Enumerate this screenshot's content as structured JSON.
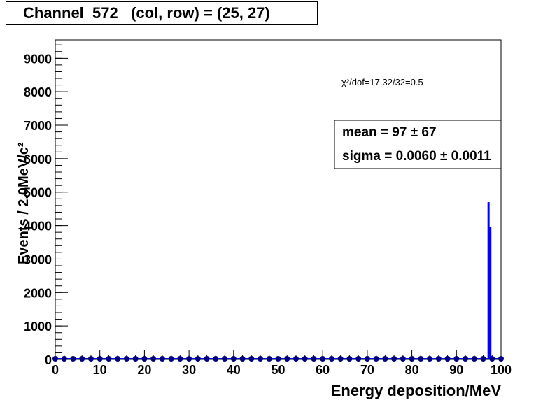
{
  "title": "Channel  572   (col, row) = (25, 27)",
  "chart_data": {
    "type": "bar",
    "xlabel": "Energy deposition/MeV",
    "ylabel": "Events / 2.0MeV/c²",
    "xlim": [
      0,
      100
    ],
    "ylim": [
      0,
      9550
    ],
    "x_ticks": [
      "0",
      "10",
      "20",
      "30",
      "40",
      "50",
      "60",
      "70",
      "80",
      "90",
      "100"
    ],
    "y_ticks": [
      "0",
      "1000",
      "2000",
      "3000",
      "4000",
      "5000",
      "6000",
      "7000",
      "8000",
      "9000"
    ],
    "histogram": {
      "color": "#0000ff",
      "bins": [
        {
          "x": 97.2,
          "y": 4700
        },
        {
          "x": 97.6,
          "y": 3950
        }
      ]
    },
    "data_points": {
      "color": "#00007f",
      "x": [
        0,
        2,
        4,
        6,
        8,
        10,
        12,
        14,
        16,
        18,
        20,
        22,
        24,
        26,
        28,
        30,
        32,
        34,
        36,
        38,
        40,
        42,
        44,
        46,
        48,
        50,
        52,
        54,
        56,
        58,
        60,
        62,
        64,
        66,
        68,
        70,
        72,
        74,
        76,
        78,
        80,
        82,
        84,
        86,
        88,
        90,
        92,
        94,
        96,
        98,
        100
      ],
      "y": [
        0,
        0,
        0,
        0,
        0,
        0,
        0,
        0,
        0,
        0,
        0,
        0,
        0,
        0,
        0,
        0,
        0,
        0,
        0,
        0,
        0,
        0,
        0,
        0,
        0,
        0,
        0,
        0,
        0,
        0,
        0,
        0,
        0,
        0,
        0,
        0,
        0,
        0,
        0,
        0,
        0,
        0,
        0,
        0,
        0,
        0,
        0,
        0,
        0,
        0,
        0
      ]
    },
    "annotations": {
      "chi2": "χ²/dof=17.32/32=0.5",
      "mean": "mean =  97 ± 67",
      "sigma": "sigma =  0.0060 ± 0.0011"
    },
    "grid": false
  }
}
